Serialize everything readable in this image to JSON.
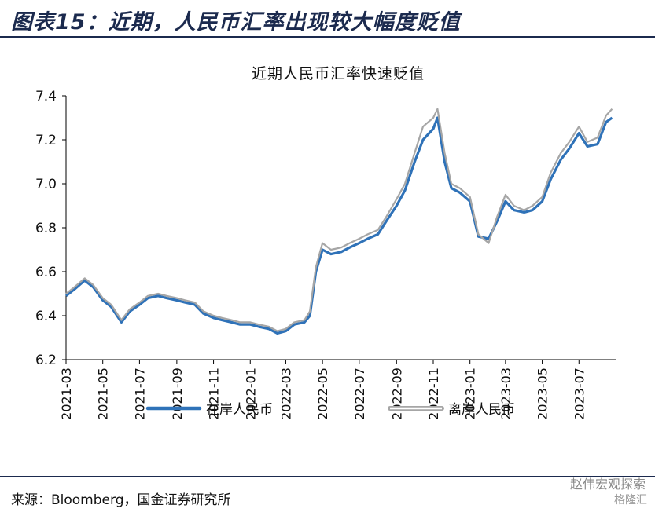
{
  "figure_title": "图表15：近期，人民币汇率出现较大幅度贬值",
  "source_note": "来源：Bloomberg，国金证券研究所",
  "watermark": "赵伟宏观探索",
  "watermark_sub": "格隆汇",
  "colors": {
    "onshore": "#2f72b8",
    "offshore": "#a6a6a6",
    "title": "#1b2a4e"
  },
  "chart_data": {
    "type": "line",
    "title": "近期人民币汇率快速贬值",
    "xlabel": "",
    "ylabel": "",
    "ylim": [
      6.2,
      7.4
    ],
    "yticks": [
      "6.2",
      "6.4",
      "6.6",
      "6.8",
      "7.0",
      "7.2",
      "7.4"
    ],
    "xticks": [
      "2021-03",
      "2021-05",
      "2021-07",
      "2021-09",
      "2021-11",
      "2022-01",
      "2022-03",
      "2022-05",
      "2022-07",
      "2022-09",
      "2022-11",
      "2023-01",
      "2023-03",
      "2023-05",
      "2023-07"
    ],
    "legend_position": "bottom",
    "series": [
      {
        "name": "在岸人民币",
        "x": [
          "2021-03-01",
          "2021-03-15",
          "2021-04-01",
          "2021-04-15",
          "2021-05-01",
          "2021-05-15",
          "2021-06-01",
          "2021-06-15",
          "2021-07-01",
          "2021-07-15",
          "2021-08-01",
          "2021-08-15",
          "2021-09-01",
          "2021-09-15",
          "2021-10-01",
          "2021-10-15",
          "2021-11-01",
          "2021-11-15",
          "2021-12-01",
          "2021-12-15",
          "2022-01-01",
          "2022-01-15",
          "2022-02-01",
          "2022-02-15",
          "2022-03-01",
          "2022-03-15",
          "2022-04-01",
          "2022-04-10",
          "2022-04-20",
          "2022-05-01",
          "2022-05-15",
          "2022-06-01",
          "2022-06-15",
          "2022-07-01",
          "2022-07-15",
          "2022-08-01",
          "2022-08-15",
          "2022-09-01",
          "2022-09-15",
          "2022-10-01",
          "2022-10-15",
          "2022-11-01",
          "2022-11-08",
          "2022-11-20",
          "2022-12-01",
          "2022-12-15",
          "2023-01-01",
          "2023-01-15",
          "2023-02-01",
          "2023-02-15",
          "2023-03-01",
          "2023-03-15",
          "2023-04-01",
          "2023-04-15",
          "2023-05-01",
          "2023-05-15",
          "2023-06-01",
          "2023-06-15",
          "2023-07-01",
          "2023-07-15",
          "2023-08-01",
          "2023-08-15",
          "2023-08-25"
        ],
        "values": [
          6.49,
          6.52,
          6.56,
          6.53,
          6.47,
          6.44,
          6.37,
          6.42,
          6.45,
          6.48,
          6.49,
          6.48,
          6.47,
          6.46,
          6.45,
          6.41,
          6.39,
          6.38,
          6.37,
          6.36,
          6.36,
          6.35,
          6.34,
          6.32,
          6.33,
          6.36,
          6.37,
          6.4,
          6.6,
          6.7,
          6.68,
          6.69,
          6.71,
          6.73,
          6.75,
          6.77,
          6.83,
          6.9,
          6.97,
          7.1,
          7.2,
          7.25,
          7.3,
          7.1,
          6.98,
          6.96,
          6.92,
          6.76,
          6.75,
          6.83,
          6.92,
          6.88,
          6.87,
          6.88,
          6.92,
          7.02,
          7.11,
          7.16,
          7.23,
          7.17,
          7.18,
          7.28,
          7.3
        ]
      },
      {
        "name": "离岸人民币",
        "x": [
          "2021-03-01",
          "2021-03-15",
          "2021-04-01",
          "2021-04-15",
          "2021-05-01",
          "2021-05-15",
          "2021-06-01",
          "2021-06-15",
          "2021-07-01",
          "2021-07-15",
          "2021-08-01",
          "2021-08-15",
          "2021-09-01",
          "2021-09-15",
          "2021-10-01",
          "2021-10-15",
          "2021-11-01",
          "2021-11-15",
          "2021-12-01",
          "2021-12-15",
          "2022-01-01",
          "2022-01-15",
          "2022-02-01",
          "2022-02-15",
          "2022-03-01",
          "2022-03-15",
          "2022-04-01",
          "2022-04-10",
          "2022-04-20",
          "2022-05-01",
          "2022-05-15",
          "2022-06-01",
          "2022-06-15",
          "2022-07-01",
          "2022-07-15",
          "2022-08-01",
          "2022-08-15",
          "2022-09-01",
          "2022-09-15",
          "2022-10-01",
          "2022-10-15",
          "2022-11-01",
          "2022-11-08",
          "2022-11-20",
          "2022-12-01",
          "2022-12-15",
          "2023-01-01",
          "2023-01-15",
          "2023-02-01",
          "2023-02-15",
          "2023-03-01",
          "2023-03-15",
          "2023-04-01",
          "2023-04-15",
          "2023-05-01",
          "2023-05-15",
          "2023-06-01",
          "2023-06-15",
          "2023-07-01",
          "2023-07-15",
          "2023-08-01",
          "2023-08-15",
          "2023-08-25"
        ],
        "values": [
          6.5,
          6.53,
          6.57,
          6.54,
          6.48,
          6.45,
          6.38,
          6.43,
          6.46,
          6.49,
          6.5,
          6.49,
          6.48,
          6.47,
          6.46,
          6.42,
          6.4,
          6.39,
          6.38,
          6.37,
          6.37,
          6.36,
          6.35,
          6.33,
          6.34,
          6.37,
          6.38,
          6.42,
          6.62,
          6.73,
          6.7,
          6.71,
          6.73,
          6.75,
          6.77,
          6.79,
          6.85,
          6.93,
          7.0,
          7.14,
          7.26,
          7.3,
          7.34,
          7.14,
          7.0,
          6.98,
          6.94,
          6.77,
          6.73,
          6.85,
          6.95,
          6.9,
          6.88,
          6.9,
          6.94,
          7.05,
          7.14,
          7.19,
          7.26,
          7.19,
          7.21,
          7.31,
          7.34
        ]
      }
    ]
  }
}
